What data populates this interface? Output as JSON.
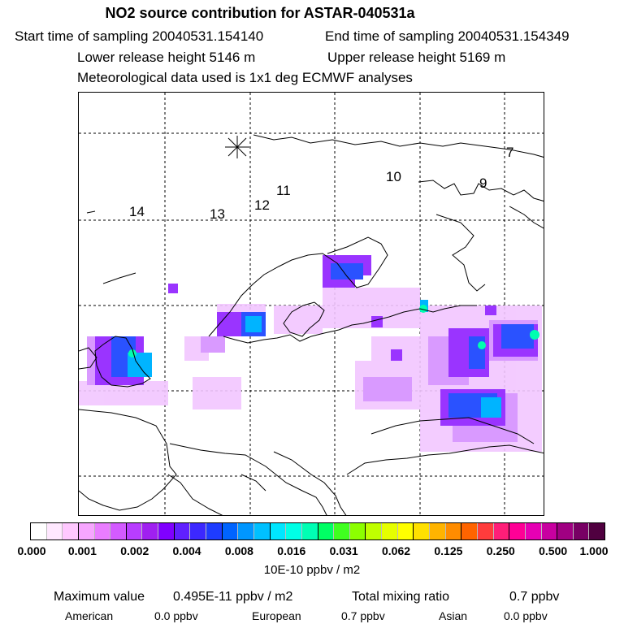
{
  "header": {
    "title": "NO2 source contribution for ASTAR-040531a",
    "start_time": "Start time of sampling 20040531.154140",
    "end_time": "End time of sampling 20040531.154349",
    "lower_height": "Lower release height 5146 m",
    "upper_height": "Upper release height 5169 m",
    "met_data": "Meteorological data used is 1x1 deg ECMWF analyses"
  },
  "map": {
    "trajectory_labels": [
      "14",
      "13",
      "12",
      "11",
      "10",
      "9",
      "7"
    ]
  },
  "legend": {
    "ticks": [
      "0.000",
      "0.001",
      "0.002",
      "0.004",
      "0.008",
      "0.016",
      "0.031",
      "0.062",
      "0.125",
      "0.250",
      "0.500",
      "1.000"
    ],
    "colors": [
      "#ffffff",
      "#ffe8ff",
      "#ffc8ff",
      "#f7a6ff",
      "#e97dff",
      "#d35bff",
      "#b83dff",
      "#a020f0",
      "#8000ff",
      "#6020ff",
      "#3c28ff",
      "#1e3cff",
      "#0064ff",
      "#0096ff",
      "#00c0ff",
      "#00e6ff",
      "#00ffe6",
      "#00ffb4",
      "#00ff64",
      "#40ff20",
      "#8cff00",
      "#c0ff00",
      "#e6ff00",
      "#ffff00",
      "#ffe000",
      "#ffb400",
      "#ff8c00",
      "#ff6400",
      "#ff3c3c",
      "#ff1e78",
      "#ff0096",
      "#e600b4",
      "#c800a0",
      "#a00082",
      "#780064",
      "#500040"
    ],
    "unit": "10E-10 ppbv / m2"
  },
  "summary": {
    "max_label": "Maximum value",
    "max_value": "0.495E-11 ppbv / m2",
    "total_label": "Total mixing ratio",
    "total_value": "0.7 ppbv",
    "american_label": "American",
    "american_value": "0.0 ppbv",
    "european_label": "European",
    "european_value": "0.7 ppbv",
    "asian_label": "Asian",
    "asian_value": "0.0 ppbv"
  }
}
